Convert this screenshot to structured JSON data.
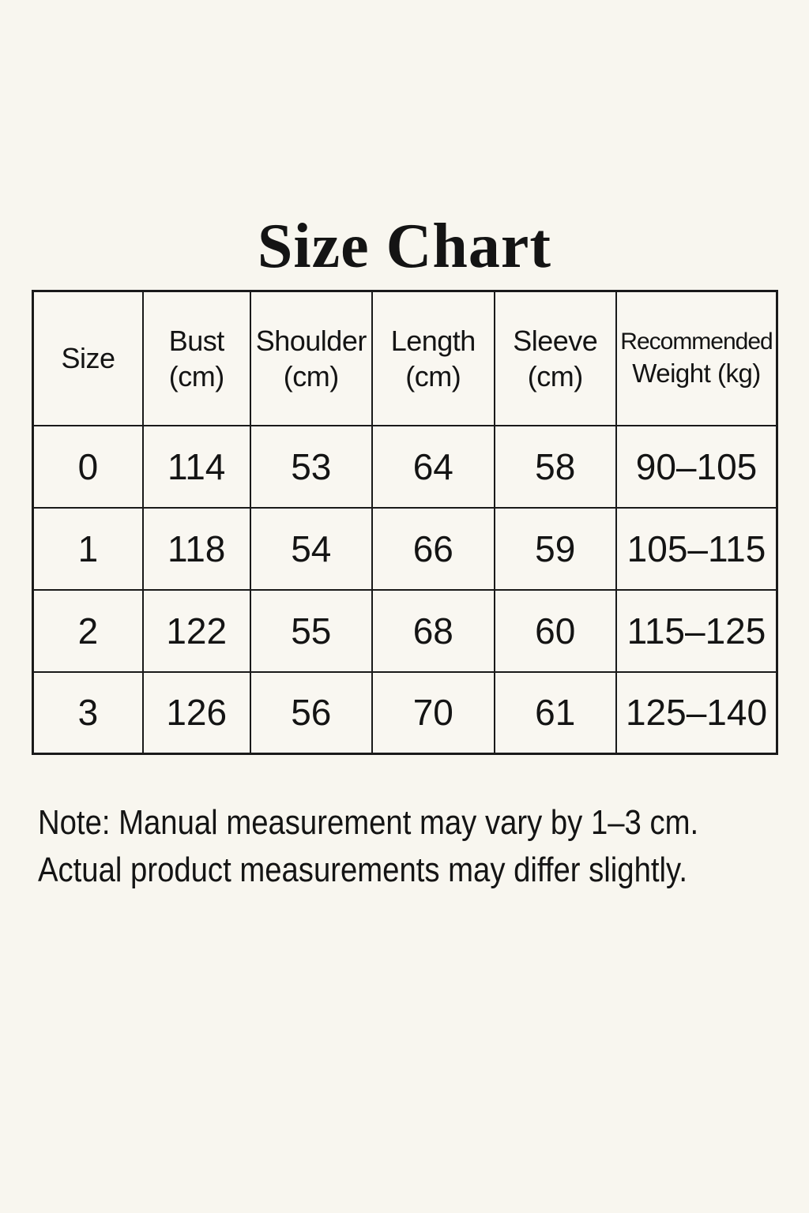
{
  "colors": {
    "background": "#f8f6ef",
    "cell_background": "#f9f7f1",
    "text": "#141414",
    "border": "#1a1a1a"
  },
  "title": "Size Chart",
  "size_table": {
    "headers": [
      {
        "line1": "Size",
        "line2": ""
      },
      {
        "line1": "Bust",
        "line2": "(cm)"
      },
      {
        "line1": "Shoulder",
        "line2": "(cm)"
      },
      {
        "line1": "Length",
        "line2": "(cm)"
      },
      {
        "line1": "Sleeve",
        "line2": "(cm)"
      },
      {
        "line1": "Recommended",
        "line2": "Weight (kg)"
      }
    ],
    "rows": [
      [
        "0",
        "114",
        "53",
        "64",
        "58",
        "90–105"
      ],
      [
        "1",
        "118",
        "54",
        "66",
        "59",
        "105–115"
      ],
      [
        "2",
        "122",
        "55",
        "68",
        "60",
        "115–125"
      ],
      [
        "3",
        "126",
        "56",
        "70",
        "61",
        "125–140"
      ]
    ]
  },
  "note": {
    "line1": "Note: Manual measurement may vary by 1–3 cm.",
    "line2": "Actual product measurements may differ slightly."
  },
  "chart_data": {
    "type": "table",
    "title": "Size Chart",
    "columns": [
      "Size",
      "Bust (cm)",
      "Shoulder (cm)",
      "Length (cm)",
      "Sleeve (cm)",
      "Recommended Weight (kg)"
    ],
    "rows": [
      [
        "0",
        114,
        53,
        64,
        58,
        "90–105"
      ],
      [
        "1",
        118,
        54,
        66,
        59,
        "105–115"
      ],
      [
        "2",
        122,
        55,
        68,
        60,
        "115–125"
      ],
      [
        "3",
        126,
        56,
        70,
        61,
        "125–140"
      ]
    ],
    "units": {
      "measurements": "cm",
      "weight": "kg"
    },
    "note": "Note: Manual measurement may vary by 1–3 cm. Actual product measurements may differ slightly."
  }
}
